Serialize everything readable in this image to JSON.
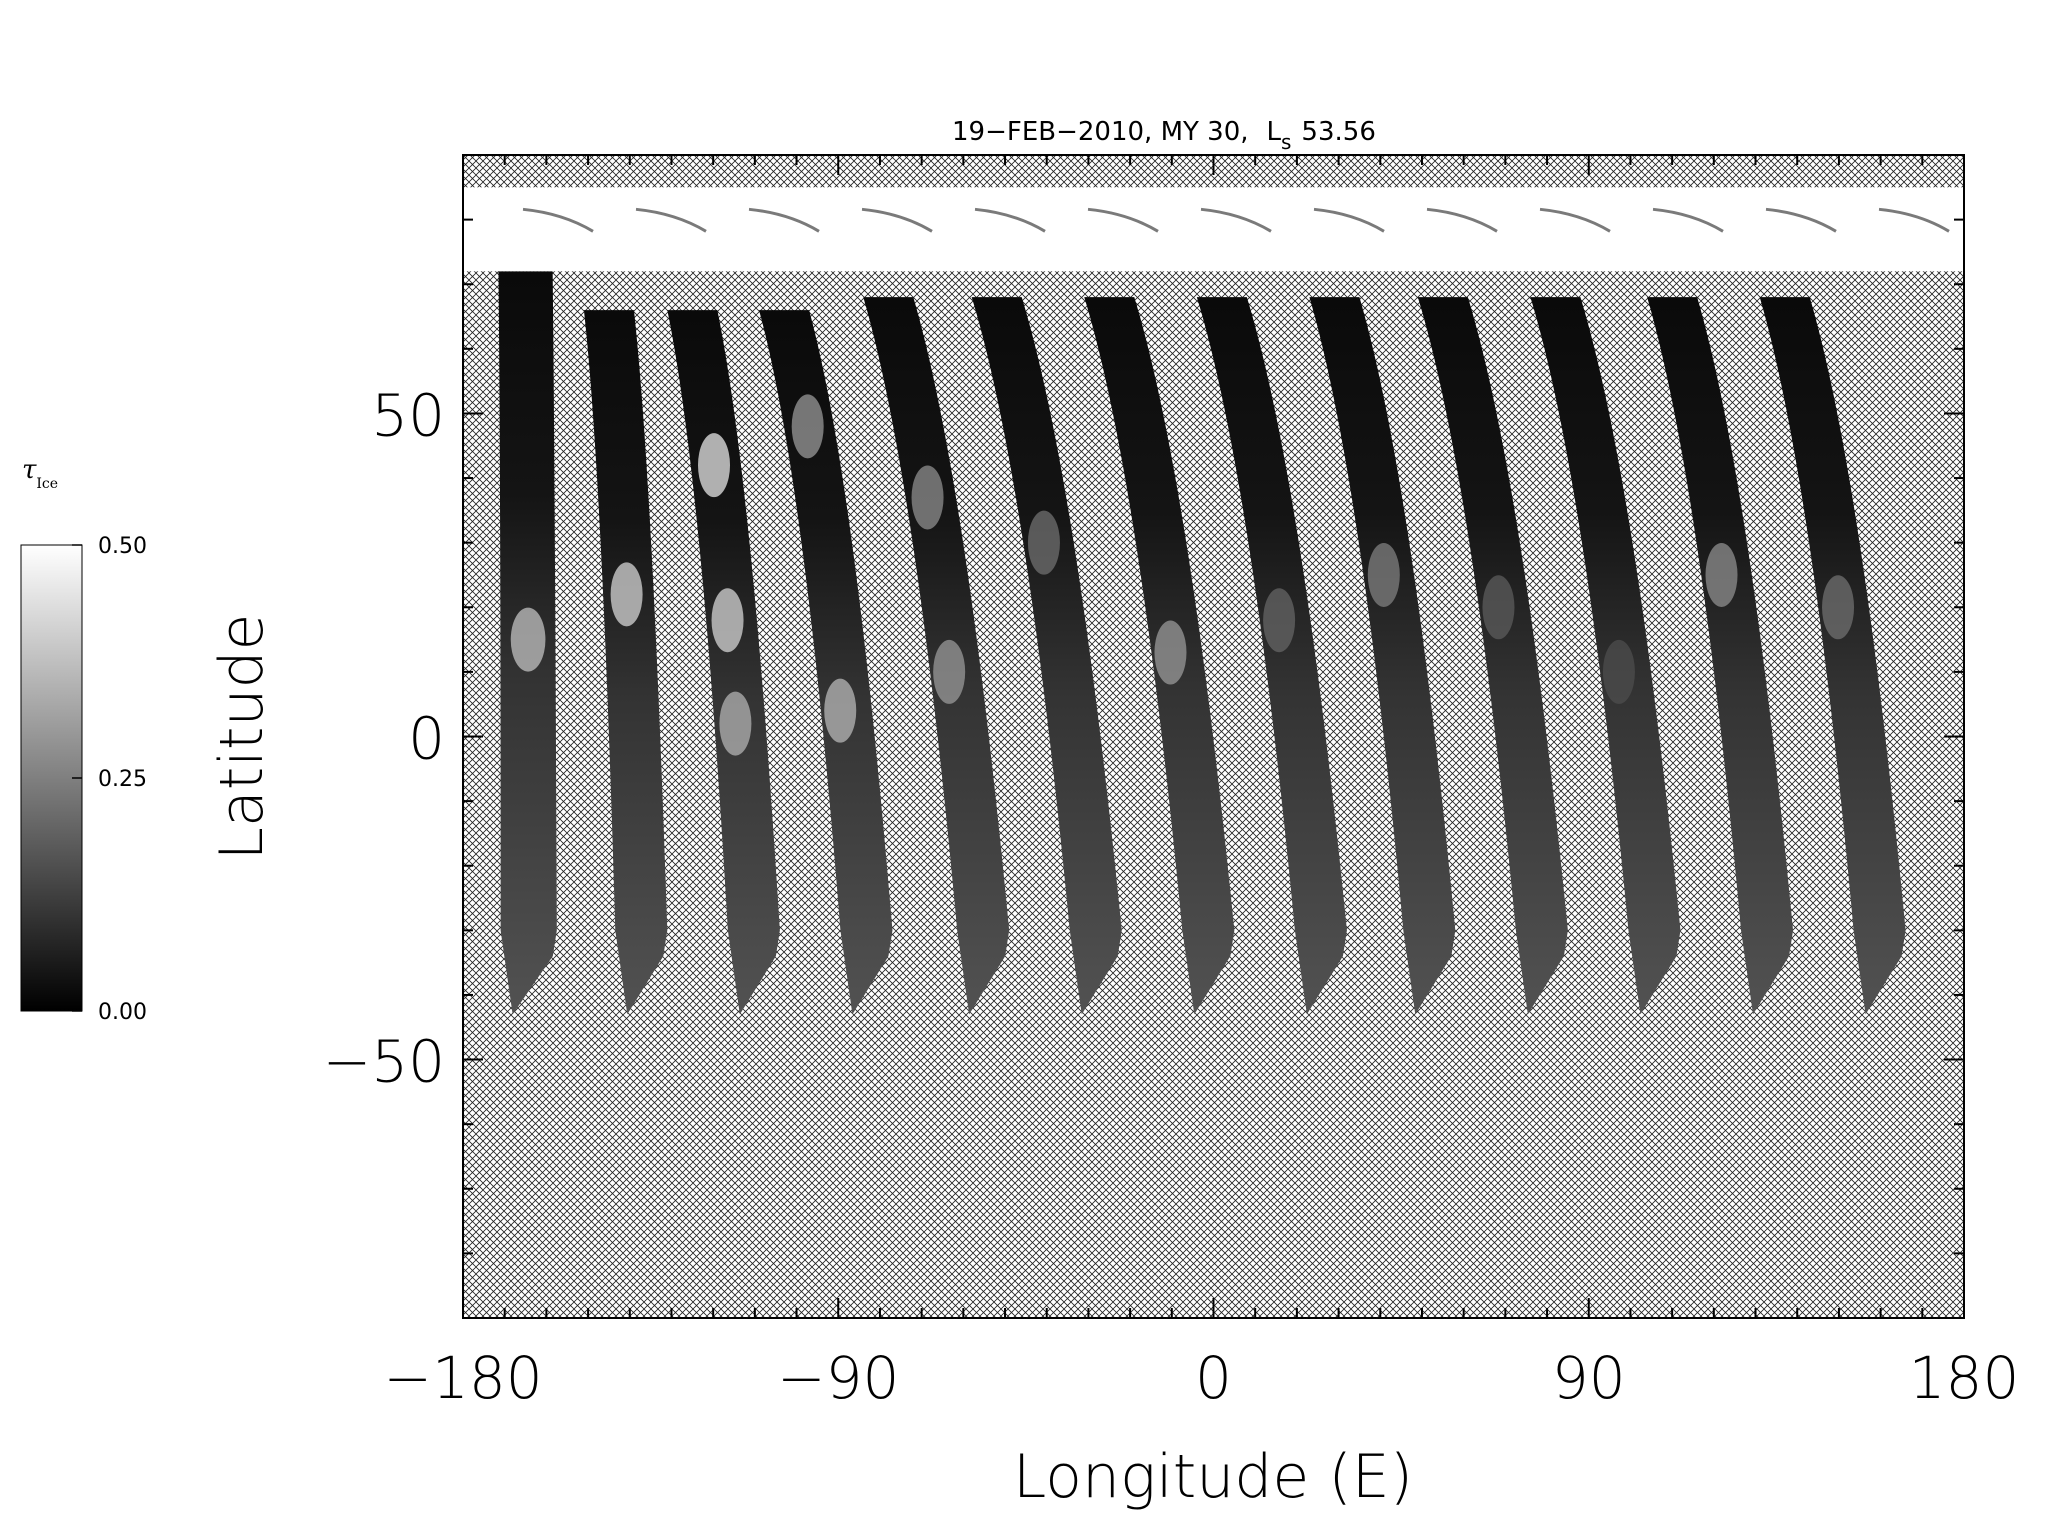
{
  "chart_data": {
    "type": "heatmap",
    "title": "19−FEB−2010, MY 30,",
    "title_ls_label": "L",
    "title_ls_sub": "s",
    "title_ls_value": "53.56",
    "xlabel": "Longitude (E)",
    "ylabel": "Latitude",
    "xlim": [
      -180,
      180
    ],
    "ylim": [
      -90,
      90
    ],
    "xticks": [
      -180,
      -90,
      0,
      90,
      180
    ],
    "xtick_labels": [
      "−180",
      "−90",
      "0",
      "90",
      "180"
    ],
    "xminor_step": 10,
    "yticks": [
      -50,
      0,
      50
    ],
    "ytick_labels": [
      "−50",
      "0",
      "50"
    ],
    "yminor_step": 10,
    "no_data_pattern": "crosshatch",
    "colorbar": {
      "label": "τ",
      "label_sub": "Ice",
      "min": 0.0,
      "max": 0.5,
      "ticks": [
        "0.00",
        "0.25",
        "0.50"
      ],
      "tick_values": [
        0.0,
        0.25,
        0.5
      ],
      "colormap": "grayscale"
    },
    "polar_cap": {
      "lat_min": 72,
      "lat_max": 85,
      "value": 0.5
    },
    "swaths": [
      {
        "lon_north": -165,
        "lon_south": -164,
        "lat_top": 72,
        "lat_bottom": -43,
        "width_deg": 13,
        "bright_spots": [
          {
            "lat": 15,
            "value": 0.38
          }
        ]
      },
      {
        "lon_north": -145,
        "lon_south": -137,
        "lat_top": 66,
        "lat_bottom": -43,
        "width_deg": 12,
        "bright_spots": [
          {
            "lat": 22,
            "value": 0.42
          }
        ]
      },
      {
        "lon_north": -125,
        "lon_south": -110,
        "lat_top": 66,
        "lat_bottom": -43,
        "width_deg": 12,
        "bright_spots": [
          {
            "lat": 42,
            "value": 0.45
          },
          {
            "lat": 18,
            "value": 0.42
          },
          {
            "lat": 2,
            "value": 0.35
          }
        ]
      },
      {
        "lon_north": -103,
        "lon_south": -83,
        "lat_top": 66,
        "lat_bottom": -43,
        "width_deg": 12,
        "bright_spots": [
          {
            "lat": 48,
            "value": 0.3
          },
          {
            "lat": 4,
            "value": 0.36
          }
        ]
      },
      {
        "lon_north": -78,
        "lon_south": -55,
        "lat_top": 68,
        "lat_bottom": -43,
        "width_deg": 12,
        "bright_spots": [
          {
            "lat": 37,
            "value": 0.28
          },
          {
            "lat": 10,
            "value": 0.3
          }
        ]
      },
      {
        "lon_north": -52,
        "lon_south": -28,
        "lat_top": 68,
        "lat_bottom": -43,
        "width_deg": 12,
        "bright_spots": [
          {
            "lat": 30,
            "value": 0.22
          }
        ]
      },
      {
        "lon_north": -25,
        "lon_south": -1,
        "lat_top": 68,
        "lat_bottom": -43,
        "width_deg": 12,
        "bright_spots": [
          {
            "lat": 13,
            "value": 0.3
          }
        ]
      },
      {
        "lon_north": 2,
        "lon_south": 26,
        "lat_top": 68,
        "lat_bottom": -43,
        "width_deg": 12,
        "bright_spots": [
          {
            "lat": 18,
            "value": 0.2
          }
        ]
      },
      {
        "lon_north": 29,
        "lon_south": 52,
        "lat_top": 68,
        "lat_bottom": -43,
        "width_deg": 12,
        "bright_spots": [
          {
            "lat": 25,
            "value": 0.25
          }
        ]
      },
      {
        "lon_north": 55,
        "lon_south": 79,
        "lat_top": 68,
        "lat_bottom": -43,
        "width_deg": 12,
        "bright_spots": [
          {
            "lat": 20,
            "value": 0.18
          }
        ]
      },
      {
        "lon_north": 82,
        "lon_south": 106,
        "lat_top": 68,
        "lat_bottom": -43,
        "width_deg": 12,
        "bright_spots": [
          {
            "lat": 10,
            "value": 0.15
          }
        ]
      },
      {
        "lon_north": 110,
        "lon_south": 133,
        "lat_top": 68,
        "lat_bottom": -43,
        "width_deg": 12,
        "bright_spots": [
          {
            "lat": 25,
            "value": 0.28
          }
        ]
      },
      {
        "lon_north": 137,
        "lon_south": 160,
        "lat_top": 68,
        "lat_bottom": -43,
        "width_deg": 12,
        "bright_spots": [
          {
            "lat": 20,
            "value": 0.22
          }
        ]
      }
    ]
  }
}
